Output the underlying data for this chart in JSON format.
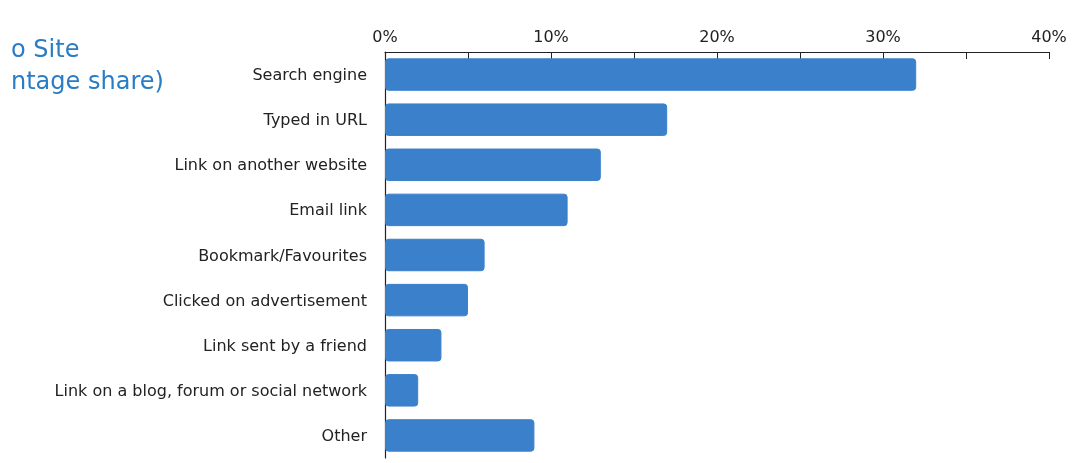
{
  "chart_data": {
    "type": "bar",
    "orientation": "horizontal",
    "title": "o Site\nntage share)",
    "categories": [
      "Search engine",
      "Typed in URL",
      "Link on another website",
      "Email link",
      "Bookmark/Favourites",
      "Clicked on advertisement",
      "Link sent by a friend",
      "Link on a blog, forum or social network",
      "Other"
    ],
    "values": [
      32,
      17,
      13,
      11,
      6,
      5,
      3.4,
      2,
      9
    ],
    "color": "#3b80ca",
    "xlim": [
      0,
      40
    ],
    "xticks": [
      {
        "value": 0,
        "label": "0%"
      },
      {
        "value": 5,
        "label": null
      },
      {
        "value": 10,
        "label": "10%"
      },
      {
        "value": 15,
        "label": null
      },
      {
        "value": 20,
        "label": "20%"
      },
      {
        "value": 25,
        "label": null
      },
      {
        "value": 30,
        "label": "30%"
      },
      {
        "value": 35,
        "label": null
      },
      {
        "value": 40,
        "label": "40%"
      }
    ],
    "grid": false
  }
}
